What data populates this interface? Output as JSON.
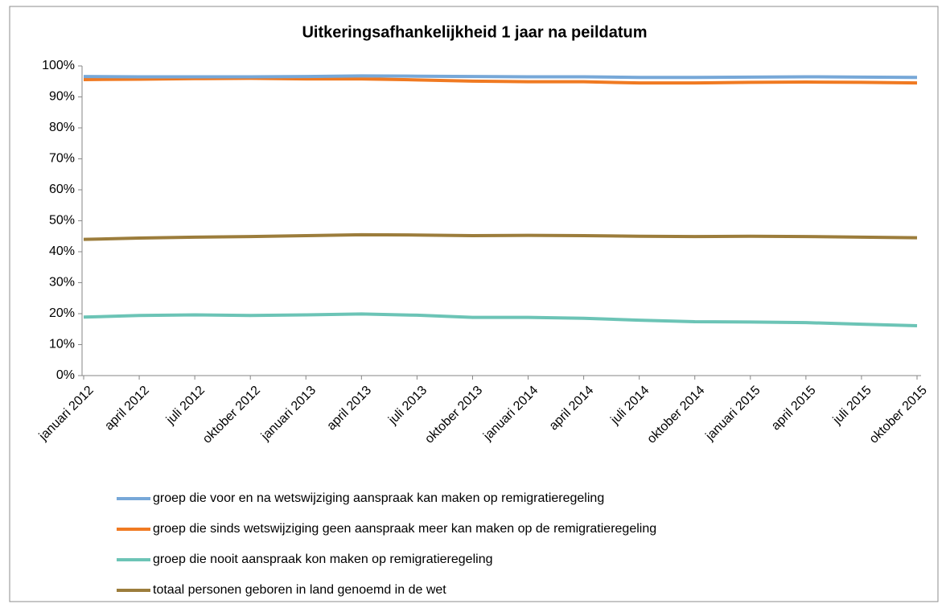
{
  "chart_data": {
    "type": "line",
    "title": "Uitkeringsafhankelijkheid 1 jaar na peildatum",
    "categories": [
      "januari 2012",
      "april 2012",
      "juli 2012",
      "oktober 2012",
      "januari 2013",
      "april 2013",
      "juli 2013",
      "oktober 2013",
      "januari 2014",
      "april 2014",
      "juli 2014",
      "oktober 2014",
      "januari 2015",
      "april 2015",
      "juli 2015",
      "oktober 2015"
    ],
    "series": [
      {
        "name": "groep die voor en na wetswijziging aanspraak kan maken op remigratieregeling",
        "color": "#77a8d8",
        "values": [
          96.6,
          96.5,
          96.5,
          96.5,
          96.6,
          96.8,
          96.7,
          96.6,
          96.5,
          96.5,
          96.3,
          96.3,
          96.4,
          96.5,
          96.4,
          96.3
        ]
      },
      {
        "name": "groep die sinds wetswijziging geen aanspraak meer kan maken op de remigratieregeling",
        "color": "#f07a22",
        "values": [
          95.6,
          95.7,
          95.9,
          96.0,
          95.8,
          95.8,
          95.5,
          95.1,
          94.9,
          94.9,
          94.5,
          94.5,
          94.7,
          94.8,
          94.7,
          94.5
        ]
      },
      {
        "name": "groep die nooit aanspraak kon maken op remigratieregeling",
        "color": "#6cc4b6",
        "values": [
          18.9,
          19.4,
          19.6,
          19.4,
          19.6,
          19.9,
          19.5,
          18.8,
          18.8,
          18.5,
          17.9,
          17.4,
          17.3,
          17.1,
          16.6,
          16.1
        ]
      },
      {
        "name": "totaal personen geboren in land genoemd in de wet",
        "color": "#9c7d3c",
        "values": [
          44.0,
          44.4,
          44.7,
          44.9,
          45.2,
          45.5,
          45.4,
          45.2,
          45.3,
          45.2,
          45.0,
          44.9,
          45.0,
          44.9,
          44.7,
          44.5
        ]
      }
    ],
    "ylim": [
      0,
      100
    ],
    "yticks": [
      {
        "value": 0,
        "label": "0%"
      },
      {
        "value": 10,
        "label": "10%"
      },
      {
        "value": 20,
        "label": "20%"
      },
      {
        "value": 30,
        "label": "30%"
      },
      {
        "value": 40,
        "label": "40%"
      },
      {
        "value": 50,
        "label": "50%"
      },
      {
        "value": 60,
        "label": "60%"
      },
      {
        "value": 70,
        "label": "70%"
      },
      {
        "value": 80,
        "label": "80%"
      },
      {
        "value": 90,
        "label": "90%"
      },
      {
        "value": 100,
        "label": "100%"
      }
    ],
    "legend": "bottom"
  }
}
